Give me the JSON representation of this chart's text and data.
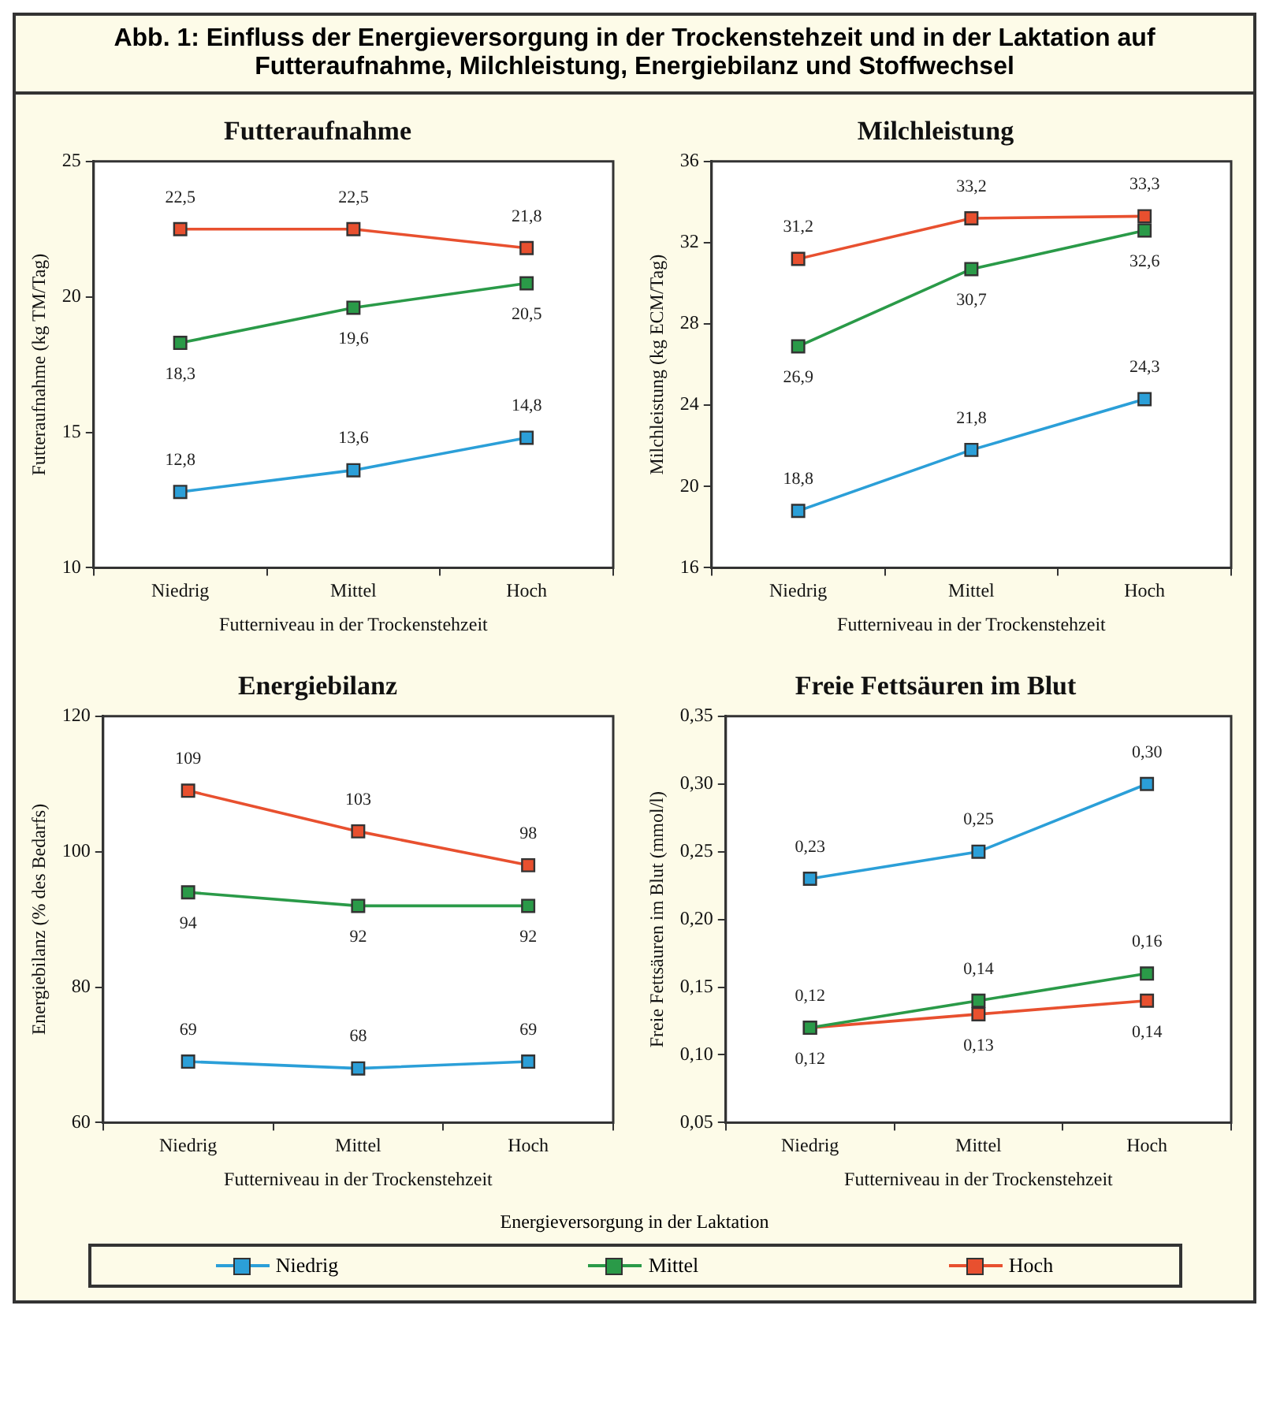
{
  "chart_data": [
    {
      "type": "line",
      "title": "Futteraufnahme",
      "xlabel": "Futterniveau in der Trockenstehzeit",
      "ylabel": "Futteraufnahme (kg TM/Tag)",
      "annotations": [
        "Abb. 1: Einfluss der Energieversorgung in der Trockenstehzeit und in der Laktation auf Futteraufnahme, Milchleistung, Energiebilanz und Stoffwechsel"
      ],
      "legend": "bottom",
      "legend_title": "Energieversorgung in der Laktation",
      "marker": "square",
      "categories": [
        "Niedrig",
        "Mittel",
        "Hoch"
      ],
      "ylim": [
        10,
        25
      ],
      "yticks": [
        10,
        15,
        20,
        25
      ],
      "series": [
        {
          "name": "Niedrig",
          "color": "#2b9fd8",
          "values": [
            12.8,
            13.6,
            14.8
          ],
          "value_labels": [
            "12,8",
            "13,6",
            "14,8"
          ]
        },
        {
          "name": "Mittel",
          "color": "#2a9a48",
          "values": [
            18.3,
            19.6,
            20.5
          ],
          "value_labels": [
            "18,3",
            "19,6",
            "20,5"
          ]
        },
        {
          "name": "Hoch",
          "color": "#e8502f",
          "values": [
            22.5,
            22.5,
            21.8
          ],
          "value_labels": [
            "22,5",
            "22,5",
            "21,8"
          ]
        }
      ]
    },
    {
      "type": "line",
      "title": "Milchleistung",
      "xlabel": "Futterniveau in der Trockenstehzeit",
      "ylabel": "Milchleistung (kg ECM/Tag)",
      "marker": "square",
      "categories": [
        "Niedrig",
        "Mittel",
        "Hoch"
      ],
      "ylim": [
        16,
        36
      ],
      "yticks": [
        16,
        20,
        24,
        28,
        32,
        36
      ],
      "series": [
        {
          "color": "#2b9fd8",
          "values": [
            18.8,
            21.8,
            24.3
          ],
          "value_labels": [
            "18,8",
            "21,8",
            "24,3"
          ]
        },
        {
          "color": "#2a9a48",
          "values": [
            26.9,
            30.7,
            32.6
          ],
          "value_labels": [
            "26,9",
            "30,7",
            "32,6"
          ]
        },
        {
          "color": "#e8502f",
          "values": [
            31.2,
            33.2,
            33.3
          ],
          "value_labels": [
            "31,2",
            "33,2",
            "33,3"
          ]
        }
      ]
    },
    {
      "type": "line",
      "title": "Energiebilanz",
      "xlabel": "Futterniveau in der Trockenstehzeit",
      "ylabel": "Energiebilanz (% des Bedarfs)",
      "marker": "square",
      "categories": [
        "Niedrig",
        "Mittel",
        "Hoch"
      ],
      "ylim": [
        60,
        120
      ],
      "yticks": [
        60,
        80,
        100,
        120
      ],
      "series": [
        {
          "color": "#2b9fd8",
          "values": [
            69,
            68,
            69
          ],
          "value_labels": [
            "69",
            "68",
            "69"
          ]
        },
        {
          "color": "#2a9a48",
          "values": [
            94,
            92,
            92
          ],
          "value_labels": [
            "94",
            "92",
            "92"
          ]
        },
        {
          "color": "#e8502f",
          "values": [
            109,
            103,
            98
          ],
          "value_labels": [
            "109",
            "103",
            "98"
          ]
        }
      ]
    },
    {
      "type": "line",
      "title": "Freie Fettsäuren im Blut",
      "xlabel": "Futterniveau in der Trockenstehzeit",
      "ylabel": "Freie Fettsäuren im Blut (mmol/l)",
      "marker": "square",
      "categories": [
        "Niedrig",
        "Mittel",
        "Hoch"
      ],
      "ylim": [
        0.05,
        0.35
      ],
      "yticks": [
        {
          "value": 0.05,
          "label": "0,05"
        },
        {
          "value": 0.1,
          "label": "0,10"
        },
        {
          "value": 0.15,
          "label": "0,15"
        },
        {
          "value": 0.2,
          "label": "0,20"
        },
        {
          "value": 0.25,
          "label": "0,25"
        },
        {
          "value": 0.3,
          "label": "0,30"
        },
        {
          "value": 0.35,
          "label": "0,35"
        }
      ],
      "series": [
        {
          "color": "#2b9fd8",
          "values": [
            0.23,
            0.25,
            0.3
          ],
          "value_labels": [
            "0,23",
            "0,25",
            "0,30"
          ]
        },
        {
          "color": "#2a9a48",
          "values": [
            0.12,
            0.14,
            0.16
          ],
          "value_labels": [
            "0,12",
            "0,14",
            "0,16"
          ]
        },
        {
          "color": "#e8502f",
          "values": [
            0.12,
            0.13,
            0.14
          ],
          "value_labels": [
            "0,12",
            "0,13",
            "0,14"
          ]
        }
      ]
    }
  ]
}
